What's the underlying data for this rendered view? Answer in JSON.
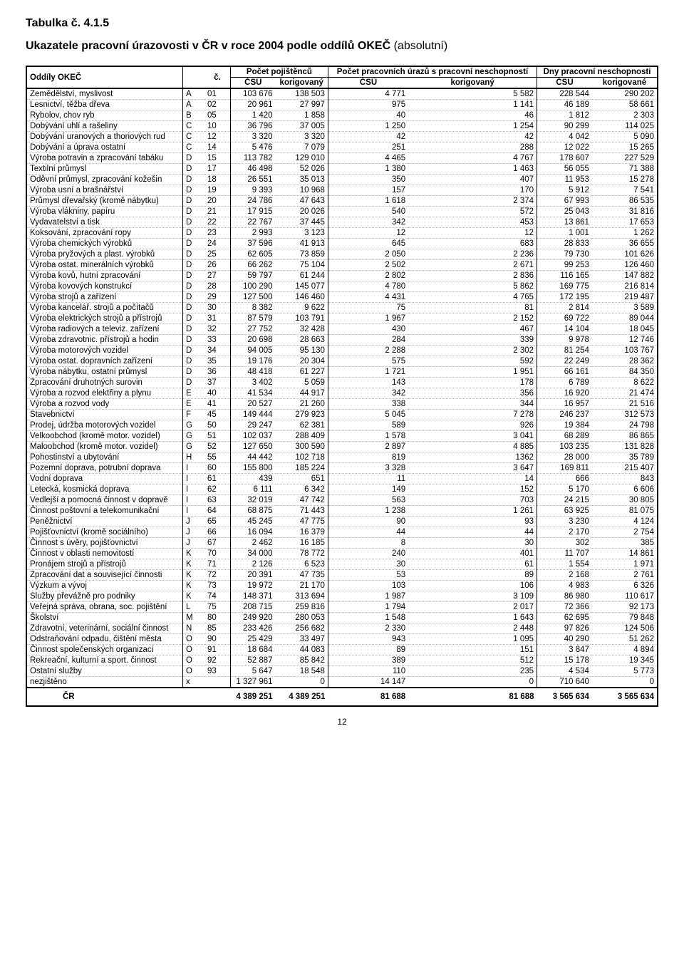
{
  "title_small": "Tabulka č. 4.1.5",
  "title_main_bold": "Ukazatele pracovní úrazovosti v ČR v roce 2004 podle oddílů OKEČ",
  "title_main_norm": " (absolutní)",
  "header": {
    "col_oddily": "Oddíly OKEČ",
    "col_c": "č.",
    "grp1": "Počet pojištěnců",
    "grp2": "Počet pracovních úrazů s pracovní neschopností",
    "grp3": "Dny pracovní neschopnosti",
    "csu": "ČSÚ",
    "kor": "korigovaný",
    "kor_e": "korigované"
  },
  "rows": [
    [
      "Zemědělství, myslivost",
      "A",
      "01",
      "103 676",
      "138 503",
      "4 771",
      "5 582",
      "228 544",
      "290 202"
    ],
    [
      "Lesnictví, těžba dřeva",
      "A",
      "02",
      "20 961",
      "27 997",
      "975",
      "1 141",
      "46 189",
      "58 661"
    ],
    [
      "Rybolov, chov ryb",
      "B",
      "05",
      "1 420",
      "1 858",
      "40",
      "46",
      "1 812",
      "2 303"
    ],
    [
      "Dobývání uhlí a rašeliny",
      "C",
      "10",
      "36 796",
      "37 005",
      "1 250",
      "1 254",
      "90 299",
      "114 025"
    ],
    [
      "Dobývání uranových a thoriových rud",
      "C",
      "12",
      "3 320",
      "3 320",
      "42",
      "42",
      "4 042",
      "5 090"
    ],
    [
      "Dobývání a úprava ostatní",
      "C",
      "14",
      "5 476",
      "7 079",
      "251",
      "288",
      "12 022",
      "15 265"
    ],
    [
      "Výroba potravin a zpracování tabáku",
      "D",
      "15",
      "113 782",
      "129 010",
      "4 465",
      "4 767",
      "178 607",
      "227 529"
    ],
    [
      "Textilní průmysl",
      "D",
      "17",
      "46 498",
      "52 026",
      "1 380",
      "1 463",
      "56 055",
      "71 388"
    ],
    [
      "Oděvní průmysl, zpracování kožešin",
      "D",
      "18",
      "26 551",
      "35 013",
      "350",
      "407",
      "11 953",
      "15 278"
    ],
    [
      "Výroba usní a brašnářství",
      "D",
      "19",
      "9 393",
      "10 968",
      "157",
      "170",
      "5 912",
      "7 541"
    ],
    [
      "Průmysl dřevařský (kromě nábytku)",
      "D",
      "20",
      "24 786",
      "47 643",
      "1 618",
      "2 374",
      "67 993",
      "86 535"
    ],
    [
      "Výroba vlákniny, papíru",
      "D",
      "21",
      "17 915",
      "20 026",
      "540",
      "572",
      "25 043",
      "31 816"
    ],
    [
      "Vydavatelství a tisk",
      "D",
      "22",
      "22 767",
      "37 445",
      "342",
      "453",
      "13 861",
      "17 653"
    ],
    [
      "Koksování, zpracování ropy",
      "D",
      "23",
      "2 993",
      "3 123",
      "12",
      "12",
      "1 001",
      "1 262"
    ],
    [
      "Výroba chemických výrobků",
      "D",
      "24",
      "37 596",
      "41 913",
      "645",
      "683",
      "28 833",
      "36 655"
    ],
    [
      "Výroba pryžových a plast. výrobků",
      "D",
      "25",
      "62 605",
      "73 859",
      "2 050",
      "2 236",
      "79 730",
      "101 626"
    ],
    [
      "Výroba ostat. minerálních výrobků",
      "D",
      "26",
      "66 262",
      "75 104",
      "2 502",
      "2 671",
      "99 253",
      "126 460"
    ],
    [
      "Výroba kovů, hutní  zpracování",
      "D",
      "27",
      "59 797",
      "61 244",
      "2 802",
      "2 836",
      "116 165",
      "147 882"
    ],
    [
      "Výroba kovových konstrukcí",
      "D",
      "28",
      "100 290",
      "145 077",
      "4 780",
      "5 862",
      "169 775",
      "216 814"
    ],
    [
      "Výroba strojů a zařízení",
      "D",
      "29",
      "127 500",
      "146 460",
      "4 431",
      "4 765",
      "172 195",
      "219 487"
    ],
    [
      "Výroba kancelář. strojů a počítačů",
      "D",
      "30",
      "8 382",
      "9 622",
      "75",
      "81",
      "2 814",
      "3 589"
    ],
    [
      "Výroba elektrických strojů a přístrojů",
      "D",
      "31",
      "87 579",
      "103 791",
      "1 967",
      "2 152",
      "69 722",
      "89 044"
    ],
    [
      "Výroba radiových a televiz. zařízení",
      "D",
      "32",
      "27 752",
      "32 428",
      "430",
      "467",
      "14 104",
      "18 045"
    ],
    [
      "Výroba zdravotnic. přístrojů a hodin",
      "D",
      "33",
      "20 698",
      "28 663",
      "284",
      "339",
      "9 978",
      "12 746"
    ],
    [
      "Výroba motorových vozidel",
      "D",
      "34",
      "94 005",
      "95 130",
      "2 288",
      "2 302",
      "81 254",
      "103 767"
    ],
    [
      "Výroba ostat. dopravních zařízení",
      "D",
      "35",
      "19 176",
      "20 304",
      "575",
      "592",
      "22 249",
      "28 362"
    ],
    [
      "Výroba nábytku, ostatní průmysl",
      "D",
      "36",
      "48 418",
      "61 227",
      "1 721",
      "1 951",
      "66 161",
      "84 350"
    ],
    [
      "Zpracování druhotných surovin",
      "D",
      "37",
      "3 402",
      "5 059",
      "143",
      "178",
      "6 789",
      "8 622"
    ],
    [
      "Výroba a rozvod elektřiny a plynu",
      "E",
      "40",
      "41 534",
      "44 917",
      "342",
      "356",
      "16 920",
      "21 474"
    ],
    [
      "Výroba a rozvod vody",
      "E",
      "41",
      "20 527",
      "21 260",
      "338",
      "344",
      "16 957",
      "21 516"
    ],
    [
      "Stavebnictví",
      "F",
      "45",
      "149 444",
      "279 923",
      "5 045",
      "7 278",
      "246 237",
      "312 573"
    ],
    [
      "Prodej, údržba  motorových vozidel",
      "G",
      "50",
      "29 247",
      "62 381",
      "589",
      "926",
      "19 384",
      "24 798"
    ],
    [
      "Velkoobchod (kromě motor. vozidel)",
      "G",
      "51",
      "102 037",
      "288 409",
      "1 578",
      "3 041",
      "68 289",
      "86 865"
    ],
    [
      "Maloobchod (kromě motor. vozidel)",
      "G",
      "52",
      "127 650",
      "300 590",
      "2 897",
      "4 885",
      "103 235",
      "131 828"
    ],
    [
      "Pohostinství a ubytování",
      "H",
      "55",
      "44 442",
      "102 718",
      "819",
      "1362",
      "28 000",
      "35 789"
    ],
    [
      "Pozemní doprava, potrubní doprava",
      "I",
      "60",
      "155 800",
      "185 224",
      "3 328",
      "3 647",
      "169 811",
      "215 407"
    ],
    [
      "Vodní doprava",
      "I",
      "61",
      "439",
      "651",
      "11",
      "14",
      "666",
      "843"
    ],
    [
      "Letecká, kosmická doprava",
      "I",
      "62",
      "6 111",
      "6 342",
      "149",
      "152",
      "5 170",
      "6 606"
    ],
    [
      "Vedlejší a pomocná činnost v dopravě",
      "I",
      "63",
      "32 019",
      "47 742",
      "563",
      "703",
      "24 215",
      "30 805"
    ],
    [
      "Činnost poštovní a telekomunikační",
      "I",
      "64",
      "68 875",
      "71 443",
      "1 238",
      "1 261",
      "63 925",
      "81 075"
    ],
    [
      "Peněžnictví",
      "J",
      "65",
      "45 245",
      "47 775",
      "90",
      "93",
      "3 230",
      "4 124"
    ],
    [
      "Pojišťovnictví (kromě sociálního)",
      "J",
      "66",
      "16 094",
      "16 379",
      "44",
      "44",
      "2 170",
      "2 754"
    ],
    [
      "Činnost s úvěry, pojišťovnictví",
      "J",
      "67",
      "2 462",
      "16 185",
      "8",
      "30",
      "302",
      "385"
    ],
    [
      "Činnost v oblasti nemovitostí",
      "K",
      "70",
      "34 000",
      "78 772",
      "240",
      "401",
      "11 707",
      "14 861"
    ],
    [
      "Pronájem strojů a přístrojů",
      "K",
      "71",
      "2 126",
      "6 523",
      "30",
      "61",
      "1 554",
      "1 971"
    ],
    [
      "Zpracování dat a související činnosti",
      "K",
      "72",
      "20 391",
      "47 735",
      "53",
      "89",
      "2 168",
      "2 761"
    ],
    [
      "Výzkum a vývoj",
      "K",
      "73",
      "19 972",
      "21 170",
      "103",
      "106",
      "4 983",
      "6 326"
    ],
    [
      "Služby převážně pro podniky",
      "K",
      "74",
      "148 371",
      "313 694",
      "1 987",
      "3 109",
      "86 980",
      "110 617"
    ],
    [
      "Veřejná správa, obrana, soc. pojištění",
      "L",
      "75",
      "208 715",
      "259 816",
      "1 794",
      "2 017",
      "72 366",
      "92 173"
    ],
    [
      "Školství",
      "M",
      "80",
      "249 920",
      "280 053",
      "1 548",
      "1 643",
      "62 695",
      "79 848"
    ],
    [
      "Zdravotní, veterinární, sociální činnost",
      "N",
      "85",
      "233 426",
      "256 682",
      "2 330",
      "2 448",
      "97 826",
      "124 506"
    ],
    [
      "Odstraňování odpadu, čištění města",
      "O",
      "90",
      "25 429",
      "33 497",
      "943",
      "1 095",
      "40 290",
      "51 262"
    ],
    [
      "Činnost společenských organizací",
      "O",
      "91",
      "18 684",
      "44 083",
      "89",
      "151",
      "3 847",
      "4 894"
    ],
    [
      "Rekreační, kulturní a sport. činnost",
      "O",
      "92",
      "52 887",
      "85 842",
      "389",
      "512",
      "15 178",
      "19 345"
    ],
    [
      "Ostatní služby",
      "O",
      "93",
      "5 647",
      "18 548",
      "110",
      "235",
      "4 534",
      "5 773"
    ],
    [
      "nezjištěno",
      "x",
      "",
      "1 327 961",
      "0",
      "14 147",
      "0",
      "710 640",
      "0"
    ]
  ],
  "total": [
    "ČR",
    "",
    "",
    "4 389 251",
    "4 389 251",
    "81 688",
    "81 688",
    "3 565 634",
    "3 565 634"
  ],
  "page": "12",
  "style": {
    "text_color": "#000000",
    "bg_color": "#ffffff",
    "dotted_color": "#bcbcbc",
    "font_family": "Arial",
    "title_fontsize": 16,
    "body_fontsize": 11.5,
    "outer_border_width": 2.5
  }
}
